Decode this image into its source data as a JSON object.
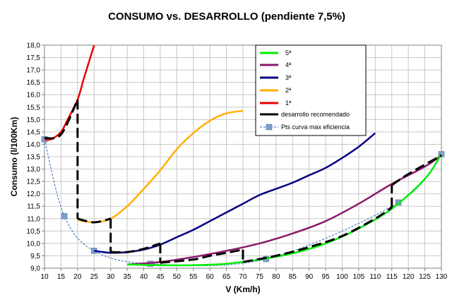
{
  "chart_data": {
    "type": "line",
    "title": "CONSUMO vs. DESARROLLO (pendiente 7,5%)",
    "xlabel": "V (Km/h)",
    "ylabel": "Consumo (l/100Km)",
    "xlim": [
      10,
      130
    ],
    "ylim": [
      9.0,
      18.0
    ],
    "x_ticks": [
      "10",
      "15",
      "20",
      "25",
      "30",
      "35",
      "40",
      "45",
      "50",
      "55",
      "60",
      "65",
      "70",
      "75",
      "80",
      "85",
      "90",
      "95",
      "100",
      "105",
      "110",
      "115",
      "120",
      "125",
      "130"
    ],
    "y_ticks": [
      "9,0",
      "9,5",
      "10,0",
      "10,5",
      "11,0",
      "11,5",
      "12,0",
      "12,5",
      "13,0",
      "13,5",
      "14,0",
      "14,5",
      "15,0",
      "15,5",
      "16,0",
      "16,5",
      "17,0",
      "17,5",
      "18,0"
    ],
    "grid": true,
    "legend_position": "top-right",
    "series": [
      {
        "name": "5ª",
        "color": "#00ee00",
        "style": "solid",
        "x": [
          35,
          45,
          55,
          65,
          75,
          85,
          95,
          105,
          115,
          125,
          130
        ],
        "y": [
          9.15,
          9.12,
          9.12,
          9.18,
          9.35,
          9.6,
          10.0,
          10.6,
          11.4,
          12.6,
          13.6
        ]
      },
      {
        "name": "4ª",
        "color": "#8b1a6b",
        "style": "solid",
        "x": [
          35,
          45,
          55,
          65,
          75,
          85,
          95,
          105,
          115,
          125,
          130
        ],
        "y": [
          9.15,
          9.25,
          9.45,
          9.7,
          10.0,
          10.4,
          10.9,
          11.6,
          12.4,
          13.1,
          13.55
        ]
      },
      {
        "name": "3ª",
        "color": "#000080",
        "style": "solid",
        "x": [
          25,
          30,
          35,
          40,
          45,
          50,
          55,
          60,
          65,
          70,
          75,
          80,
          85,
          90,
          95,
          100,
          105,
          110
        ],
        "y": [
          9.7,
          9.62,
          9.65,
          9.75,
          9.95,
          10.25,
          10.55,
          10.9,
          11.25,
          11.6,
          11.95,
          12.2,
          12.45,
          12.75,
          13.05,
          13.45,
          13.9,
          14.45
        ]
      },
      {
        "name": "2ª",
        "color": "#ffb000",
        "style": "solid",
        "x": [
          20,
          25,
          30,
          35,
          40,
          45,
          50,
          55,
          60,
          65,
          70
        ],
        "y": [
          10.95,
          10.85,
          11.0,
          11.5,
          12.2,
          12.95,
          13.8,
          14.45,
          14.95,
          15.25,
          15.35
        ]
      },
      {
        "name": "1ª",
        "color": "#ee0000",
        "style": "solid",
        "x": [
          10,
          12,
          15,
          17,
          20,
          22,
          25
        ],
        "y": [
          14.2,
          14.2,
          14.5,
          15.0,
          15.8,
          16.7,
          18.0
        ]
      },
      {
        "name": "desarrollo recomendado",
        "color": "#000000",
        "style": "dashed",
        "x": [
          10,
          15,
          20,
          20,
          25,
          30,
          30,
          35,
          40,
          45,
          45,
          55,
          60,
          65,
          70,
          70,
          80,
          90,
          100,
          110,
          115,
          115,
          120,
          130
        ],
        "y": [
          14.25,
          14.4,
          15.8,
          11.0,
          10.85,
          11.0,
          9.65,
          9.65,
          9.78,
          10.0,
          9.22,
          9.35,
          9.5,
          9.62,
          9.75,
          9.25,
          9.5,
          9.85,
          10.3,
          11.0,
          11.45,
          12.35,
          12.8,
          13.55
        ]
      },
      {
        "name": "Pts curva max eficiencia",
        "color": "#4f81bd",
        "style": "dotted-with-markers",
        "x": [
          10,
          16,
          25,
          42,
          77,
          117,
          130
        ],
        "y": [
          14.2,
          11.1,
          9.7,
          9.18,
          9.37,
          11.65,
          13.6
        ]
      }
    ]
  }
}
